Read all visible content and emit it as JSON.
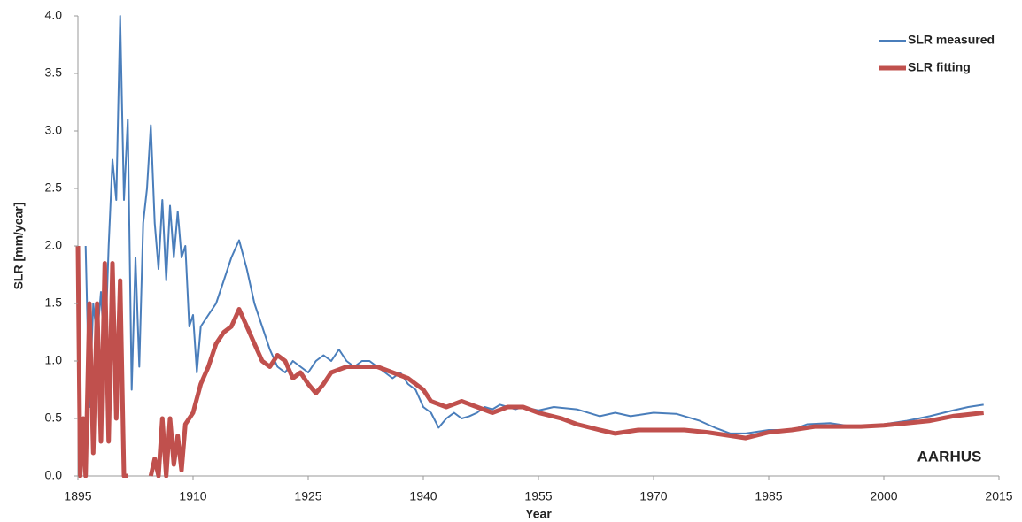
{
  "chart_data": {
    "type": "line",
    "xlabel": "Year",
    "ylabel": "SLR [mm/year]",
    "annotation": "AARHUS",
    "xlim": [
      1895,
      2015
    ],
    "xticks": [
      1895,
      1910,
      1925,
      1940,
      1955,
      1970,
      1985,
      2000,
      2015
    ],
    "ylim": [
      0,
      4
    ],
    "yticks": [
      {
        "value": 0,
        "label": "0.0"
      },
      0.5,
      {
        "value": 1,
        "label": "1.0"
      },
      1.5,
      {
        "value": 2,
        "label": "2.0"
      },
      2.5,
      {
        "value": 3,
        "label": "3.0"
      },
      3.5,
      {
        "value": 4,
        "label": "4.0"
      }
    ],
    "legend": "top-right",
    "series": [
      {
        "name": "SLR measured",
        "color": "#4a7ebb",
        "width": 2,
        "x": [
          1896,
          1896.5,
          1897,
          1897.5,
          1898,
          1898.5,
          1899,
          1899.5,
          1900,
          1900.5,
          1901,
          1901.5,
          1902,
          1902.5,
          1903,
          1903.5,
          1904,
          1904.5,
          1905,
          1905.5,
          1906,
          1906.5,
          1907,
          1907.5,
          1908,
          1908.5,
          1909,
          1909.5,
          1910,
          1910.5,
          1911,
          1912,
          1913,
          1914,
          1915,
          1916,
          1917,
          1918,
          1919,
          1920,
          1921,
          1922,
          1923,
          1924,
          1925,
          1926,
          1927,
          1928,
          1929,
          1930,
          1931,
          1932,
          1933,
          1934,
          1935,
          1936,
          1937,
          1938,
          1939,
          1940,
          1941,
          1942,
          1943,
          1944,
          1945,
          1946,
          1947,
          1948,
          1949,
          1950,
          1951,
          1952,
          1953,
          1955,
          1957,
          1960,
          1963,
          1965,
          1967,
          1970,
          1973,
          1976,
          1978,
          1980,
          1982,
          1985,
          1988,
          1990,
          1993,
          1996,
          2000,
          2003,
          2006,
          2009,
          2011,
          2013
        ],
        "values": [
          2.0,
          0.6,
          1.5,
          1.2,
          1.6,
          1.0,
          2.0,
          2.75,
          2.4,
          4.0,
          2.4,
          3.1,
          0.75,
          1.9,
          0.95,
          2.2,
          2.5,
          3.05,
          2.2,
          1.8,
          2.4,
          1.7,
          2.35,
          1.9,
          2.3,
          1.9,
          2.0,
          1.3,
          1.4,
          0.9,
          1.3,
          1.4,
          1.5,
          1.7,
          1.9,
          2.05,
          1.8,
          1.5,
          1.3,
          1.1,
          0.95,
          0.9,
          1.0,
          0.95,
          0.9,
          1.0,
          1.05,
          1.0,
          1.1,
          1.0,
          0.95,
          1.0,
          1.0,
          0.95,
          0.9,
          0.85,
          0.9,
          0.8,
          0.75,
          0.6,
          0.55,
          0.42,
          0.5,
          0.55,
          0.5,
          0.52,
          0.55,
          0.6,
          0.58,
          0.62,
          0.6,
          0.58,
          0.6,
          0.57,
          0.6,
          0.58,
          0.52,
          0.55,
          0.52,
          0.55,
          0.54,
          0.48,
          0.42,
          0.37,
          0.37,
          0.4,
          0.4,
          0.45,
          0.46,
          0.43,
          0.45,
          0.48,
          0.52,
          0.57,
          0.6,
          0.62
        ]
      },
      {
        "name": "SLR fitting",
        "color": "#c0504d",
        "width": 5,
        "x": [
          1895,
          1895.3,
          1895.7,
          1896,
          1896.5,
          1897,
          1897.5,
          1898,
          1898.5,
          1899,
          1899.5,
          1900,
          1900.5,
          1901,
          1901.5,
          1903,
          1904.5,
          1905,
          1905.5,
          1906,
          1906.5,
          1907,
          1907.5,
          1908,
          1908.5,
          1909,
          1910,
          1911,
          1912,
          1913,
          1914,
          1915,
          1916,
          1917,
          1918,
          1919,
          1920,
          1921,
          1922,
          1923,
          1924,
          1925,
          1926,
          1927,
          1928,
          1930,
          1932,
          1934,
          1936,
          1938,
          1940,
          1941,
          1943,
          1945,
          1947,
          1949,
          1951,
          1953,
          1955,
          1958,
          1960,
          1963,
          1965,
          1968,
          1971,
          1974,
          1977,
          1980,
          1982,
          1985,
          1988,
          1991,
          1994,
          1997,
          2000,
          2003,
          2006,
          2009,
          2013
        ],
        "values": [
          2.0,
          0,
          0.5,
          0,
          1.5,
          0.2,
          1.5,
          0.3,
          1.85,
          0.3,
          1.85,
          0.5,
          1.7,
          0,
          0,
          null,
          0,
          0.15,
          0,
          0.5,
          0,
          0.5,
          0.1,
          0.35,
          0.05,
          0.45,
          0.55,
          0.8,
          0.95,
          1.15,
          1.25,
          1.3,
          1.45,
          1.3,
          1.15,
          1.0,
          0.95,
          1.05,
          1.0,
          0.85,
          0.9,
          0.8,
          0.72,
          0.8,
          0.9,
          0.95,
          0.95,
          0.95,
          0.9,
          0.85,
          0.75,
          0.65,
          0.6,
          0.65,
          0.6,
          0.55,
          0.6,
          0.6,
          0.55,
          0.5,
          0.45,
          0.4,
          0.37,
          0.4,
          0.4,
          0.4,
          0.38,
          0.35,
          0.33,
          0.38,
          0.4,
          0.43,
          0.43,
          0.43,
          0.44,
          0.46,
          0.48,
          0.52,
          0.55
        ]
      }
    ]
  }
}
